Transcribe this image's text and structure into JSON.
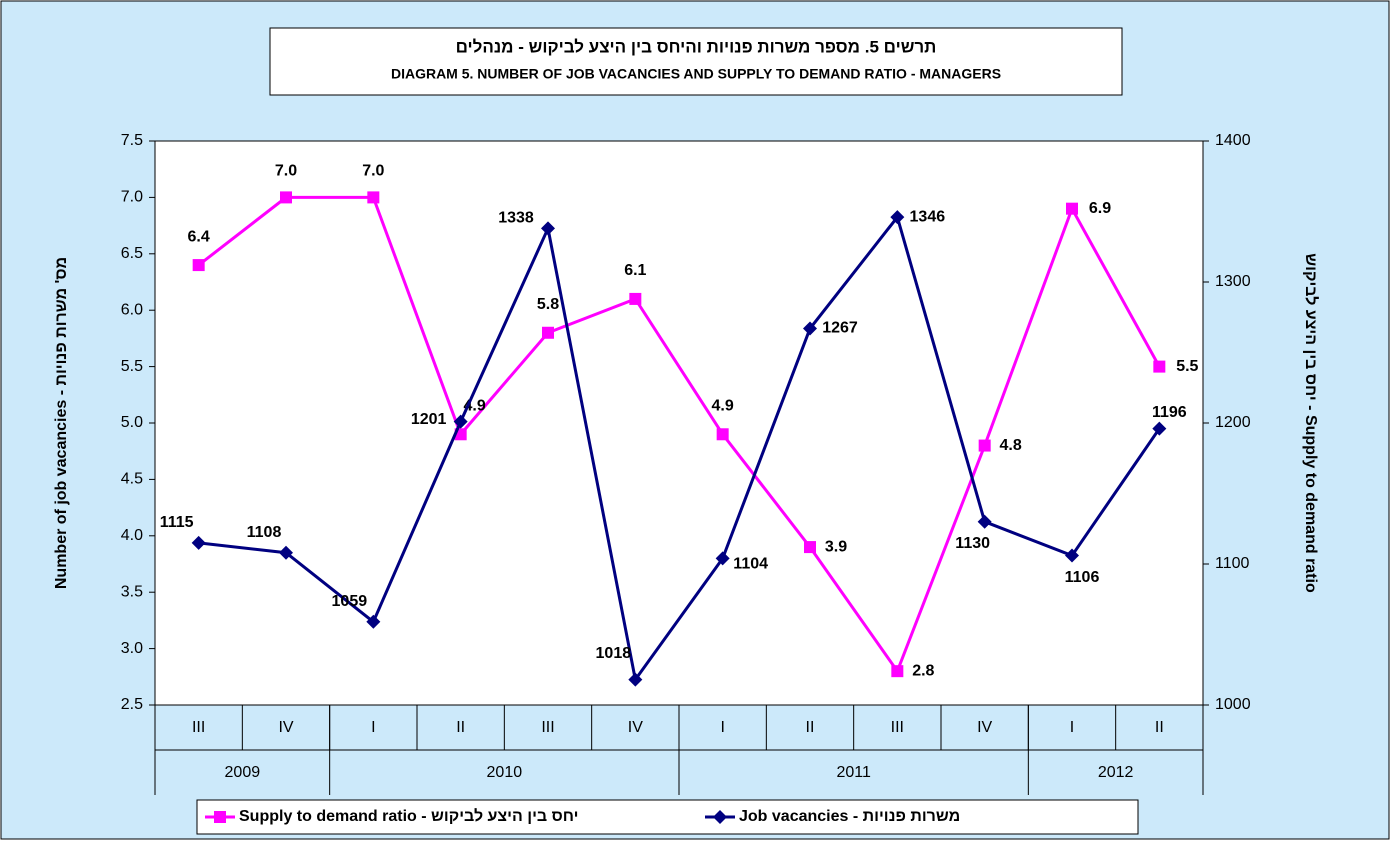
{
  "chart_data": {
    "type": "line",
    "title": "תרשים 5. מספר משרות פנויות והיחס בין היצע לביקוש - מנהלים",
    "subtitle": "DIAGRAM 5. NUMBER OF JOB VACANCIES AND SUPPLY TO DEMAND RATIO - MANAGERS",
    "ylabel": "Number of job vacancies - מס' משרות פנויות",
    "y2label": "יחס בין היצע לביקוש - Supply to demand ratio",
    "categories": [
      "III",
      "IV",
      "I",
      "II",
      "III",
      "IV",
      "I",
      "II",
      "III",
      "IV",
      "I",
      "II"
    ],
    "groups": [
      {
        "label": "2009",
        "count": 2
      },
      {
        "label": "2010",
        "count": 4
      },
      {
        "label": "2011",
        "count": 4
      },
      {
        "label": "2012",
        "count": 2
      }
    ],
    "ylim": [
      2.5,
      7.5
    ],
    "yticks": [
      7.5,
      {
        "value": 7,
        "label": "7.0"
      },
      6.5,
      {
        "value": 6,
        "label": "6.0"
      },
      5.5,
      {
        "value": 5,
        "label": "5.0"
      },
      4.5,
      {
        "value": 4,
        "label": "4.0"
      },
      3.5,
      {
        "value": 3,
        "label": "3.0"
      },
      2.5
    ],
    "y2lim": [
      1000,
      1400
    ],
    "y2ticks": [
      1400,
      1300,
      1200,
      1100,
      1000
    ],
    "series": [
      {
        "name": "Supply to demand ratio - יחס בין היצע לביקוש",
        "color": "#ff00ff",
        "marker": "square",
        "values": [
          6.4,
          7.0,
          7.0,
          4.9,
          5.8,
          6.1,
          4.9,
          3.9,
          2.8,
          4.8,
          6.9,
          5.5
        ],
        "value_labels": [
          "6.4",
          "7.0",
          "7.0",
          "4.9",
          "5.8",
          "6.1",
          "4.9",
          "3.9",
          "2.8",
          "4.8",
          "6.9",
          "5.5"
        ]
      },
      {
        "name": "Job vacancies - משרות פנויות",
        "color": "#000080",
        "marker": "diamond",
        "axis": "y2",
        "values": [
          1115,
          1108,
          1059,
          1201,
          1338,
          1018,
          1104,
          1267,
          1346,
          1130,
          1106,
          1196
        ]
      }
    ],
    "legend": "bottom"
  }
}
